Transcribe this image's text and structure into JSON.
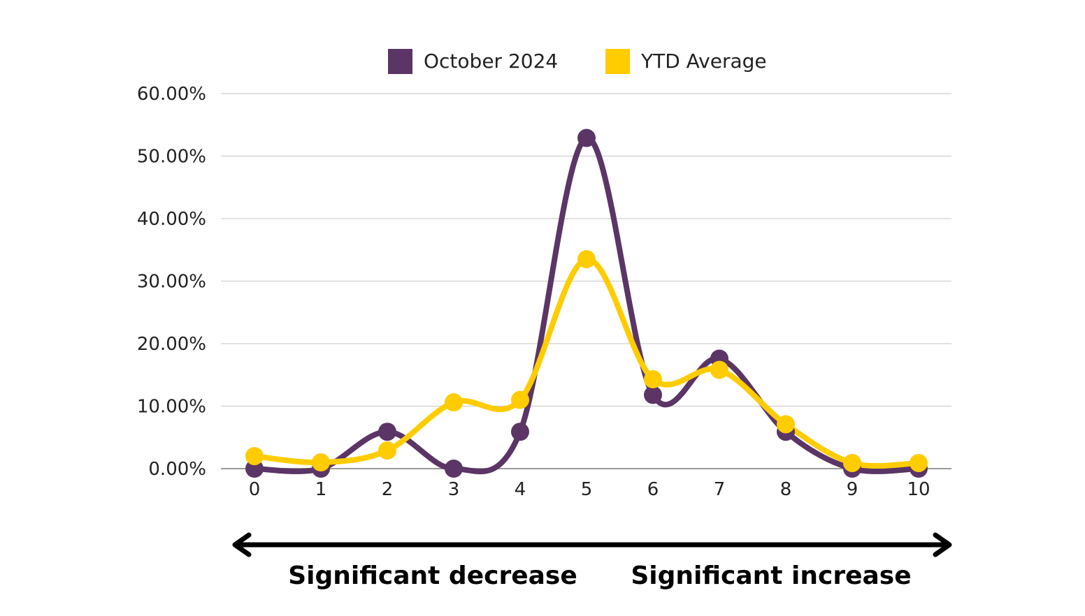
{
  "chart_data": {
    "type": "line",
    "x": [
      0,
      1,
      2,
      3,
      4,
      5,
      6,
      7,
      8,
      9,
      10
    ],
    "series": [
      {
        "name": "October 2024",
        "color": "#5b3566",
        "values": [
          0.0,
          0.0,
          5.9,
          0.0,
          5.9,
          52.9,
          11.8,
          17.6,
          5.9,
          0.0,
          0.0
        ]
      },
      {
        "name": "YTD Average",
        "color": "#ffcc00",
        "values": [
          2.0,
          1.0,
          2.9,
          10.6,
          11.0,
          33.5,
          14.3,
          15.8,
          7.1,
          0.9,
          0.9
        ]
      }
    ],
    "yticks": [
      "0.00%",
      "10.00%",
      "20.00%",
      "30.00%",
      "40.00%",
      "50.00%",
      "60.00%"
    ],
    "xticks": [
      "0",
      "1",
      "2",
      "3",
      "4",
      "5",
      "6",
      "7",
      "8",
      "9",
      "10"
    ],
    "ylim": [
      0,
      60
    ],
    "xlim": [
      0,
      10
    ],
    "grid": true,
    "smooth": true,
    "legend_position": "top-center",
    "annotations": {
      "left": "Significant decrease",
      "right": "Significant increase"
    }
  }
}
